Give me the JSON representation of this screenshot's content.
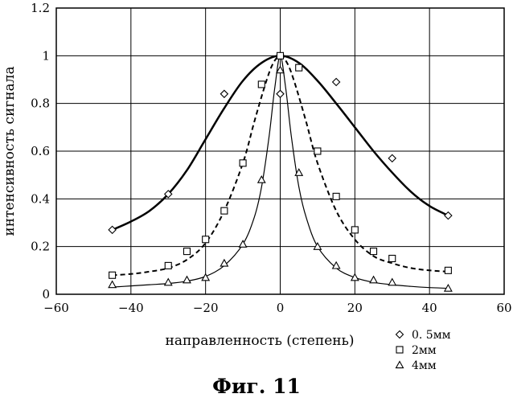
{
  "chart_data": {
    "type": "scatter",
    "xlabel": "направленность (степень)",
    "ylabel": "интенсивность сигнала",
    "xlim": [
      -60,
      60
    ],
    "ylim": [
      0,
      1.2
    ],
    "xticks": [
      "−60",
      "−40",
      "−20",
      "0",
      "20",
      "40",
      "60"
    ],
    "yticks": [
      "0",
      "0.2",
      "0.4",
      "0.6",
      "0.8",
      "1",
      "1.2"
    ],
    "grid": true,
    "legend_position": "bottom-right",
    "series": [
      {
        "name": "0. 5мм",
        "marker": "diamond",
        "line_style": "solid-thick",
        "points": [
          [
            -45,
            0.27
          ],
          [
            -30,
            0.42
          ],
          [
            -15,
            0.84
          ],
          [
            0,
            0.84
          ],
          [
            0,
            1.0
          ],
          [
            15,
            0.89
          ],
          [
            30,
            0.57
          ],
          [
            45,
            0.33
          ]
        ],
        "curve": [
          [
            -45,
            0.27
          ],
          [
            -40,
            0.305
          ],
          [
            -35,
            0.35
          ],
          [
            -30,
            0.42
          ],
          [
            -25,
            0.52
          ],
          [
            -20,
            0.65
          ],
          [
            -15,
            0.78
          ],
          [
            -10,
            0.895
          ],
          [
            -5,
            0.97
          ],
          [
            0,
            1.0
          ],
          [
            5,
            0.97
          ],
          [
            10,
            0.895
          ],
          [
            15,
            0.8
          ],
          [
            20,
            0.7
          ],
          [
            25,
            0.6
          ],
          [
            30,
            0.51
          ],
          [
            35,
            0.43
          ],
          [
            40,
            0.37
          ],
          [
            45,
            0.33
          ]
        ]
      },
      {
        "name": "2мм",
        "marker": "square",
        "line_style": "dashed",
        "points": [
          [
            -45,
            0.08
          ],
          [
            -30,
            0.12
          ],
          [
            -25,
            0.18
          ],
          [
            -20,
            0.23
          ],
          [
            -15,
            0.35
          ],
          [
            -10,
            0.55
          ],
          [
            -5,
            0.88
          ],
          [
            0,
            1.0
          ],
          [
            5,
            0.95
          ],
          [
            10,
            0.6
          ],
          [
            15,
            0.41
          ],
          [
            20,
            0.27
          ],
          [
            25,
            0.18
          ],
          [
            30,
            0.15
          ],
          [
            45,
            0.1
          ]
        ],
        "curve": [
          [
            -45,
            0.08
          ],
          [
            -40,
            0.085
          ],
          [
            -35,
            0.095
          ],
          [
            -30,
            0.11
          ],
          [
            -25,
            0.145
          ],
          [
            -20,
            0.215
          ],
          [
            -15,
            0.35
          ],
          [
            -10,
            0.55
          ],
          [
            -7,
            0.72
          ],
          [
            -4,
            0.88
          ],
          [
            -2,
            0.965
          ],
          [
            0,
            1.0
          ],
          [
            2,
            0.965
          ],
          [
            4,
            0.88
          ],
          [
            7,
            0.72
          ],
          [
            10,
            0.55
          ],
          [
            15,
            0.35
          ],
          [
            20,
            0.23
          ],
          [
            25,
            0.16
          ],
          [
            30,
            0.13
          ],
          [
            35,
            0.11
          ],
          [
            40,
            0.1
          ],
          [
            45,
            0.095
          ]
        ]
      },
      {
        "name": "4мм",
        "marker": "triangle",
        "line_style": "solid-thin",
        "points": [
          [
            -45,
            0.04
          ],
          [
            -30,
            0.05
          ],
          [
            -25,
            0.06
          ],
          [
            -20,
            0.07
          ],
          [
            -15,
            0.13
          ],
          [
            -10,
            0.21
          ],
          [
            -5,
            0.48
          ],
          [
            0,
            0.94
          ],
          [
            5,
            0.51
          ],
          [
            10,
            0.2
          ],
          [
            15,
            0.12
          ],
          [
            20,
            0.07
          ],
          [
            25,
            0.06
          ],
          [
            30,
            0.05
          ],
          [
            45,
            0.025
          ]
        ],
        "curve": [
          [
            -45,
            0.03
          ],
          [
            -40,
            0.035
          ],
          [
            -35,
            0.04
          ],
          [
            -30,
            0.045
          ],
          [
            -25,
            0.055
          ],
          [
            -20,
            0.075
          ],
          [
            -15,
            0.12
          ],
          [
            -10,
            0.21
          ],
          [
            -7,
            0.32
          ],
          [
            -5,
            0.45
          ],
          [
            -3,
            0.66
          ],
          [
            -1.5,
            0.86
          ],
          [
            0,
            1.0
          ],
          [
            1.5,
            0.86
          ],
          [
            3,
            0.66
          ],
          [
            5,
            0.45
          ],
          [
            7,
            0.32
          ],
          [
            10,
            0.2
          ],
          [
            15,
            0.11
          ],
          [
            20,
            0.07
          ],
          [
            25,
            0.05
          ],
          [
            30,
            0.04
          ],
          [
            35,
            0.033
          ],
          [
            40,
            0.028
          ],
          [
            45,
            0.025
          ]
        ]
      }
    ]
  },
  "caption": "Фиг. 11"
}
